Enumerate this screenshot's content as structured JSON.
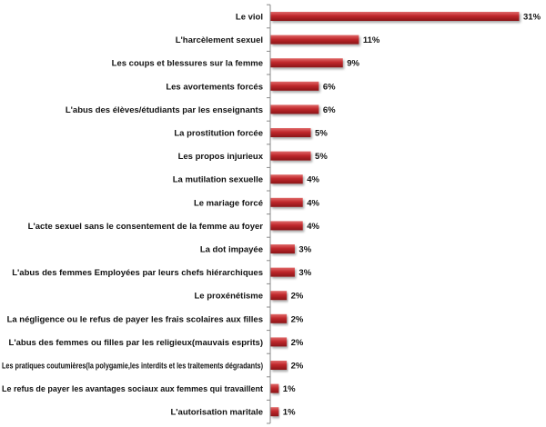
{
  "chart_data": {
    "type": "bar",
    "orientation": "horizontal",
    "categories": [
      "Le viol",
      "L'harcèlement sexuel",
      "Les coups et blessures sur la femme",
      "Les avortements forcés",
      "L'abus des élèves/étudiants par les enseignants",
      "La prostitution forcée",
      "Les propos injurieux",
      "La mutilation sexuelle",
      "Le mariage forcé",
      "L'acte sexuel sans le consentement de la femme au foyer",
      "La dot impayée",
      "L'abus des femmes Employées par leurs chefs hiérarchiques",
      "Le proxénétisme",
      "La négligence ou le refus de payer les frais scolaires aux filles",
      "L'abus des femmes ou filles par les religieux(mauvais esprits)",
      "Les pratiques coutumières(la polygamie,les interdits et les traitements dégradants)",
      "Le refus de payer les avantages sociaux aux femmes qui travaillent",
      "L'autorisation maritale"
    ],
    "values": [
      31,
      11,
      9,
      6,
      6,
      5,
      5,
      4,
      4,
      4,
      3,
      3,
      2,
      2,
      2,
      2,
      1,
      1
    ],
    "value_labels": [
      "31%",
      "11%",
      "9%",
      "6%",
      "6%",
      "5%",
      "5%",
      "4%",
      "4%",
      "4%",
      "3%",
      "3%",
      "2%",
      "2%",
      "2%",
      "2%",
      "1%",
      "1%"
    ],
    "title": "",
    "xlabel": "",
    "ylabel": "",
    "xlim": [
      0,
      31
    ],
    "grid": false,
    "legend": "none",
    "bar_color": "#c0282c",
    "bar_highlight_color": "#e06a6a",
    "bar_shadow_color": "#8a1518"
  }
}
